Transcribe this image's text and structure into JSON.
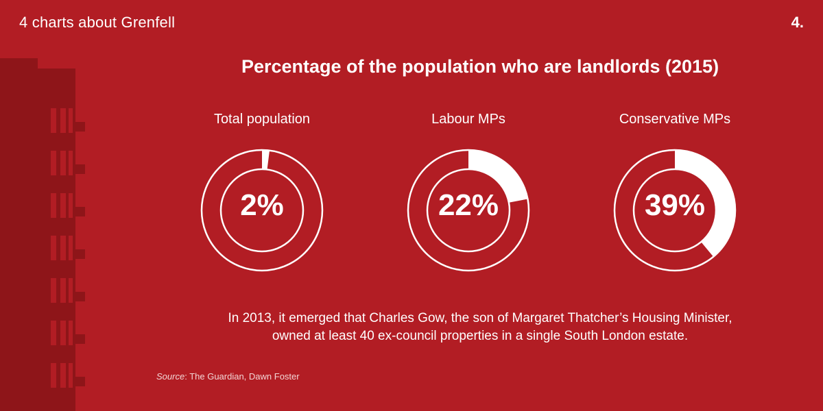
{
  "header": {
    "title": "4 charts about Grenfell",
    "page_number": "4."
  },
  "chart_data": {
    "type": "pie",
    "title": "Percentage of the population who are landlords (2015)",
    "series": [
      {
        "name": "Total population",
        "value": 2,
        "label": "2%"
      },
      {
        "name": "Labour MPs",
        "value": 22,
        "label": "22%"
      },
      {
        "name": "Conservative MPs",
        "value": 39,
        "label": "39%"
      }
    ],
    "max": 100,
    "colors": {
      "background": "#b21d24",
      "ring": "#ffffff",
      "tower": "#8e1519"
    }
  },
  "note": {
    "line1": "In 2013, it emerged that Charles Gow, the son of Margaret Thatcher’s Housing Minister,",
    "line2": "owned at least 40 ex-council properties in a single South London estate."
  },
  "source": {
    "label": "Source",
    "text": ": The Guardian, Dawn Foster"
  }
}
